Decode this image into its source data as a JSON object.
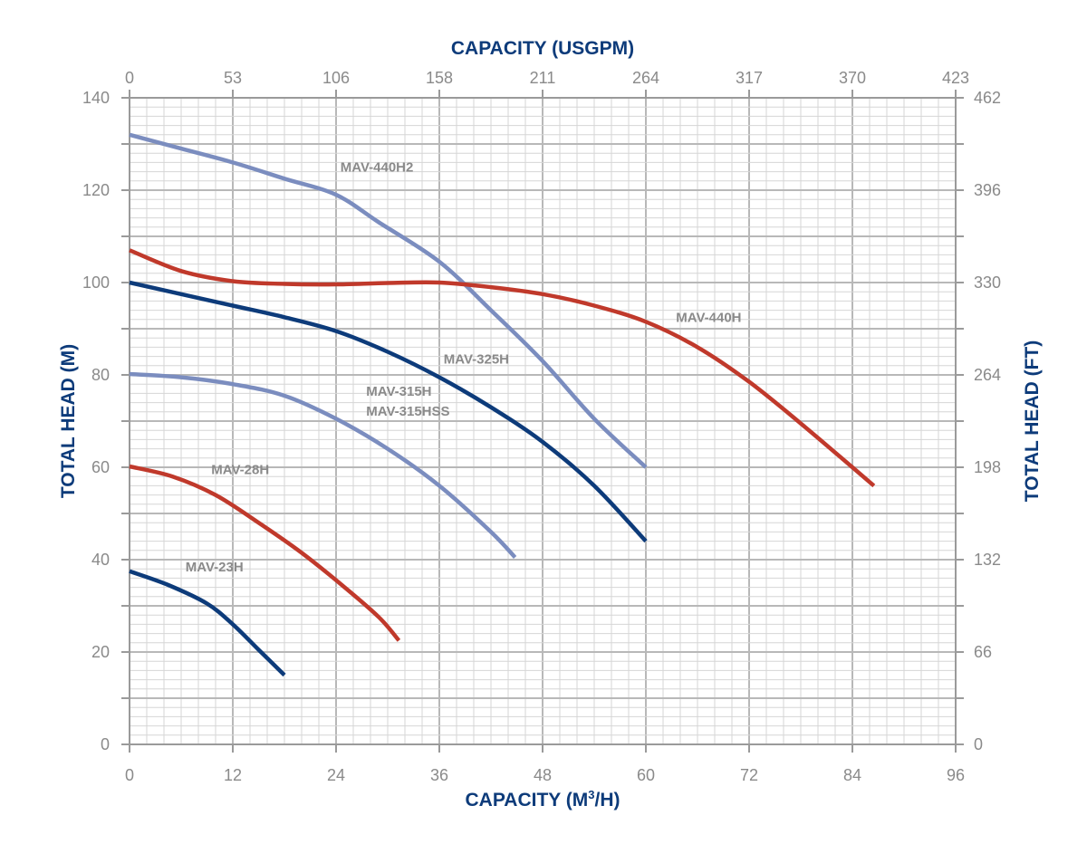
{
  "chart_data": {
    "type": "line",
    "title": "",
    "xlabel_bottom_prefix": "CAPACITY (M",
    "xlabel_bottom_sup": "3",
    "xlabel_bottom_suffix": "/H)",
    "xlabel_top": "CAPACITY (USGPM)",
    "ylabel_left": "TOTAL HEAD (M)",
    "ylabel_right": "TOTAL HEAD (FT)",
    "xlim": [
      0,
      96
    ],
    "ylim": [
      0,
      140
    ],
    "x_ticks": [
      "0",
      "12",
      "24",
      "36",
      "48",
      "60",
      "72",
      "84",
      "96"
    ],
    "x_top_ticks": [
      "0",
      "53",
      "106",
      "158",
      "211",
      "264",
      "317",
      "370",
      "423"
    ],
    "y_ticks": [
      "0",
      "20",
      "40",
      "60",
      "80",
      "100",
      "120",
      "140"
    ],
    "y_right_ticks": [
      "0",
      "66",
      "132",
      "198",
      "264",
      "330",
      "396",
      "462"
    ],
    "grid": true,
    "series": [
      {
        "name": "MAV-440H2",
        "color": "#7b8dbf",
        "label_lines": [
          "MAV-440H2"
        ],
        "label_at": [
          24.5,
          124
        ],
        "points": [
          [
            0,
            132
          ],
          [
            6,
            129
          ],
          [
            12,
            126
          ],
          [
            18,
            122.5
          ],
          [
            24,
            119
          ],
          [
            29,
            113
          ],
          [
            36,
            104.5
          ],
          [
            42,
            94
          ],
          [
            48,
            83
          ],
          [
            54,
            70.5
          ],
          [
            60,
            60
          ]
        ]
      },
      {
        "name": "MAV-440H",
        "color": "#c0392b",
        "label_lines": [
          "MAV-440H"
        ],
        "label_at": [
          63.5,
          91.5
        ],
        "points": [
          [
            0,
            107
          ],
          [
            6,
            102.5
          ],
          [
            12,
            100.3
          ],
          [
            18,
            99.7
          ],
          [
            24,
            99.6
          ],
          [
            30,
            99.9
          ],
          [
            36,
            100
          ],
          [
            42,
            99
          ],
          [
            48,
            97.5
          ],
          [
            54,
            95
          ],
          [
            60,
            91.5
          ],
          [
            66,
            86
          ],
          [
            72,
            78.5
          ],
          [
            78,
            69.5
          ],
          [
            84,
            60
          ],
          [
            86.5,
            56
          ]
        ]
      },
      {
        "name": "MAV-325H",
        "color": "#0d3b7a",
        "label_lines": [
          "MAV-325H"
        ],
        "label_at": [
          36.5,
          82.5
        ],
        "points": [
          [
            0,
            100
          ],
          [
            6,
            97.5
          ],
          [
            12,
            95
          ],
          [
            18,
            92.5
          ],
          [
            24,
            89.5
          ],
          [
            30,
            85
          ],
          [
            36,
            79.5
          ],
          [
            42,
            73
          ],
          [
            48,
            65.5
          ],
          [
            54,
            56
          ],
          [
            60,
            44
          ]
        ]
      },
      {
        "name": "MAV-315H / MAV-315HSS",
        "color": "#7b8dbf",
        "label_lines": [
          "MAV-315H",
          "MAV-315HSS"
        ],
        "label_at": [
          27.5,
          75.5
        ],
        "points": [
          [
            0,
            80.2
          ],
          [
            6,
            79.5
          ],
          [
            12,
            78
          ],
          [
            18,
            75.5
          ],
          [
            24,
            70.5
          ],
          [
            30,
            64
          ],
          [
            36,
            56
          ],
          [
            42,
            46
          ],
          [
            44.8,
            40.5
          ]
        ]
      },
      {
        "name": "MAV-28H",
        "color": "#c0392b",
        "label_lines": [
          "MAV-28H"
        ],
        "label_at": [
          9.5,
          58.5
        ],
        "points": [
          [
            0,
            60.2
          ],
          [
            5,
            58
          ],
          [
            10,
            54
          ],
          [
            15,
            48
          ],
          [
            20,
            41.5
          ],
          [
            25,
            34
          ],
          [
            29,
            27.5
          ],
          [
            31.3,
            22.5
          ]
        ]
      },
      {
        "name": "MAV-23H",
        "color": "#0d3b7a",
        "label_lines": [
          "MAV-23H"
        ],
        "label_at": [
          6.5,
          37.5
        ],
        "points": [
          [
            0,
            37.5
          ],
          [
            4.5,
            34.5
          ],
          [
            9,
            30.5
          ],
          [
            12,
            26
          ],
          [
            15,
            20.5
          ],
          [
            18,
            15
          ]
        ]
      }
    ]
  },
  "colors": {
    "axis_title": "#0d3b7a",
    "grid_minor": "#d6d6d6",
    "grid_major": "#b8b8b8",
    "frame": "#9a9a9a",
    "tick_text": "#8a8a8a"
  }
}
